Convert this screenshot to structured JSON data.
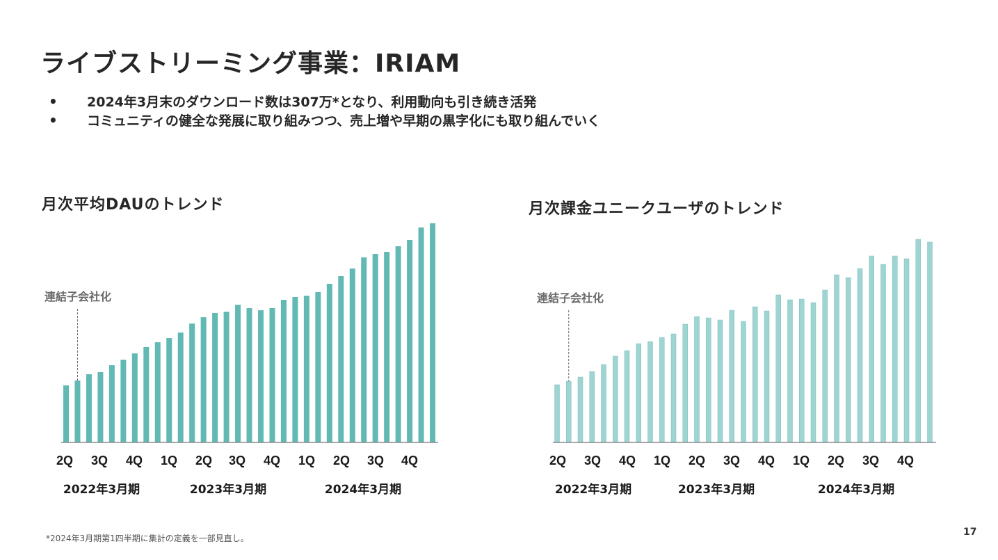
{
  "slide": {
    "title": "ライブストリーミング事業：IRIAM",
    "bullets": [
      "2024年3月末のダウンロード数は307万*となり、利用動向も引き続き活発",
      "コミュニティの健全な発展に取り組みつつ、売上増や早期の黒字化にも取り組んでいく"
    ],
    "bullet_symbol": "•",
    "footnote": "*2024年3月期第1四半期に集計の定義を一部見直し。",
    "page_number": "17"
  },
  "colors": {
    "left_bar": "#62b9b3",
    "right_bar": "#9ed4d2",
    "axis": "#888888",
    "annotation_line": "#666666"
  },
  "chart_data": [
    {
      "type": "bar",
      "title": "月次平均DAUのトレンド",
      "annotation": "連結子会社化",
      "annotation_index": 1,
      "xlabel": "",
      "ylabel": "",
      "y_axis_visible": false,
      "grid": false,
      "legend": "none",
      "quarter_labels": [
        "2Q",
        "3Q",
        "4Q",
        "1Q",
        "2Q",
        "3Q",
        "4Q",
        "1Q",
        "2Q",
        "3Q",
        "4Q"
      ],
      "fiscal_year_labels": [
        "2022年3月期",
        "2023年3月期",
        "2024年3月期"
      ],
      "values": [
        82,
        89,
        98,
        101,
        111,
        119,
        128,
        137,
        144,
        150,
        158,
        171,
        180,
        186,
        188,
        198,
        193,
        190,
        193,
        205,
        209,
        211,
        216,
        228,
        239,
        250,
        266,
        271,
        274,
        282,
        291,
        309,
        315
      ],
      "ylim": [
        0,
        320
      ]
    },
    {
      "type": "bar",
      "title": "月次課金ユニークユーザのトレンド",
      "annotation": "連結子会社化",
      "annotation_index": 1,
      "xlabel": "",
      "ylabel": "",
      "y_axis_visible": false,
      "grid": false,
      "legend": "none",
      "quarter_labels": [
        "2Q",
        "3Q",
        "4Q",
        "1Q",
        "2Q",
        "3Q",
        "4Q",
        "1Q",
        "2Q",
        "3Q",
        "4Q"
      ],
      "fiscal_year_labels": [
        "2022年3月期",
        "2023年3月期",
        "2024年3月期"
      ],
      "values": [
        83,
        88,
        94,
        102,
        112,
        124,
        132,
        142,
        145,
        151,
        156,
        170,
        181,
        179,
        176,
        190,
        174,
        195,
        189,
        212,
        205,
        206,
        201,
        219,
        241,
        237,
        250,
        268,
        256,
        268,
        264,
        292,
        288
      ],
      "ylim": [
        0,
        320
      ]
    }
  ]
}
